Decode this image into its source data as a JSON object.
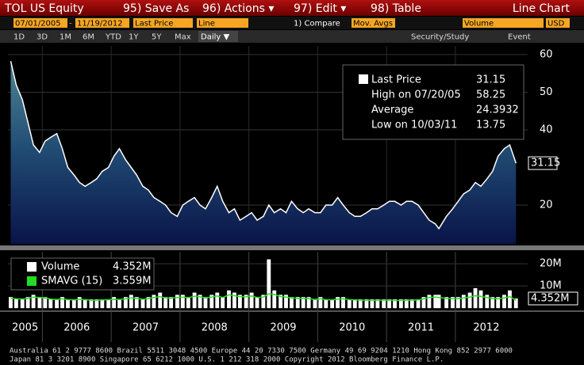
{
  "toolbar": {
    "security": "TOL US Equity",
    "save_as": "95) Save As",
    "actions": "96) Actions ▾",
    "edit": "97) Edit ▾",
    "table": "98) Table",
    "view": "Line Chart"
  },
  "settings_bar": {
    "start_date": "07/01/2005",
    "dash": "-",
    "end_date": "11/19/2012",
    "field": "Last Price",
    "style": "Line",
    "compare": "1) Compare",
    "mov_avgs": "Mov. Avgs",
    "lower": "Volume",
    "currency": "USD"
  },
  "period_bar": {
    "buttons": [
      "1D",
      "3D",
      "1M",
      "6M",
      "YTD",
      "1Y",
      "5Y",
      "Max"
    ],
    "frequency": "Daily ▼",
    "study": "Security/Study",
    "event": "Event"
  },
  "footer": {
    "line1": "Australia 61 2 9777 8600 Brazil 5511 3048 4500 Europe 44 20 7330 7500 Germany 49 69 9204 1210 Hong Kong 852 2977 6000",
    "line2": "Japan 81 3 3201 8900        Singapore 65 6212 1000        U.S. 1 212 318 2000        Copyright 2012 Bloomberg Finance L.P."
  },
  "chart_data": [
    {
      "type": "line",
      "legend": [
        {
          "label": "Last Price",
          "stat": "31.15"
        },
        {
          "label": "High on 07/20/05",
          "stat": "58.25"
        },
        {
          "label": "Average",
          "stat": "24.3932"
        },
        {
          "label": "Low on 10/03/11",
          "stat": "13.75"
        }
      ],
      "last_tag": "31.15",
      "x": [
        2005.54,
        2005.62,
        2005.71,
        2005.79,
        2005.87,
        2005.96,
        2006.04,
        2006.12,
        2006.21,
        2006.29,
        2006.37,
        2006.46,
        2006.54,
        2006.62,
        2006.71,
        2006.79,
        2006.87,
        2006.96,
        2007.04,
        2007.12,
        2007.21,
        2007.29,
        2007.37,
        2007.46,
        2007.54,
        2007.62,
        2007.71,
        2007.79,
        2007.87,
        2007.96,
        2008.04,
        2008.12,
        2008.21,
        2008.29,
        2008.37,
        2008.46,
        2008.54,
        2008.62,
        2008.71,
        2008.79,
        2008.87,
        2008.96,
        2009.04,
        2009.12,
        2009.21,
        2009.29,
        2009.37,
        2009.46,
        2009.54,
        2009.62,
        2009.71,
        2009.79,
        2009.87,
        2009.96,
        2010.04,
        2010.12,
        2010.21,
        2010.29,
        2010.37,
        2010.46,
        2010.54,
        2010.62,
        2010.71,
        2010.79,
        2010.87,
        2010.96,
        2011.04,
        2011.12,
        2011.21,
        2011.29,
        2011.37,
        2011.46,
        2011.54,
        2011.62,
        2011.71,
        2011.76,
        2011.87,
        2011.96,
        2012.04,
        2012.12,
        2012.21,
        2012.29,
        2012.37,
        2012.46,
        2012.54,
        2012.62,
        2012.71,
        2012.79,
        2012.88
      ],
      "series": [
        {
          "name": "Last Price",
          "color": "#ffffff",
          "values": [
            58.25,
            52,
            48,
            42,
            36,
            34,
            37,
            38,
            39,
            35,
            30,
            28,
            26,
            25,
            26,
            27,
            29,
            30,
            33,
            35,
            32,
            30,
            28,
            25,
            24,
            22,
            21,
            20,
            18,
            17,
            20,
            21,
            22,
            20,
            19,
            22,
            25,
            21,
            18,
            19,
            16,
            17,
            18,
            16,
            17,
            20,
            18,
            19,
            18,
            21,
            19,
            18,
            19,
            18,
            18,
            20,
            20,
            22,
            20,
            18,
            17,
            17,
            18,
            19,
            19,
            20,
            21,
            21,
            20,
            21,
            21,
            20,
            18,
            16,
            15,
            13.75,
            17,
            19,
            21,
            23,
            24,
            26,
            25,
            27,
            29,
            33,
            35,
            36,
            31.15
          ]
        }
      ],
      "xlim": [
        2005.5,
        2013.05
      ],
      "ylim": [
        9.7,
        62.3
      ],
      "yticks": [
        20,
        40,
        50,
        60
      ],
      "year_separators": [
        2006,
        2007,
        2008,
        2009,
        2010,
        2011,
        2012
      ],
      "xticks": [
        {
          "value": 2005.75,
          "label": "2005"
        },
        {
          "value": 2006.5,
          "label": "2006"
        },
        {
          "value": 2007.5,
          "label": "2007"
        },
        {
          "value": 2008.5,
          "label": "2008"
        },
        {
          "value": 2009.5,
          "label": "2009"
        },
        {
          "value": 2010.5,
          "label": "2010"
        },
        {
          "value": 2011.5,
          "label": "2011"
        },
        {
          "value": 2012.45,
          "label": "2012"
        }
      ],
      "grid": true
    },
    {
      "type": "bar",
      "legend": [
        {
          "label": "Volume",
          "stat": "4.352M"
        },
        {
          "label": "SMAVG (15)",
          "stat": "3.559M"
        }
      ],
      "last_tag": "4.352M",
      "series": [
        {
          "name": "Volume",
          "color": "#ffffff",
          "values": [
            5,
            4,
            4,
            5,
            6,
            5,
            5,
            4,
            4,
            5,
            4,
            4,
            5,
            4,
            4,
            4,
            4,
            4,
            5,
            4,
            5,
            6,
            5,
            4,
            5,
            6,
            7,
            5,
            5,
            6,
            6,
            5,
            7,
            6,
            5,
            6,
            7,
            5,
            8,
            7,
            6,
            6,
            7,
            5,
            6,
            22,
            8,
            6,
            6,
            5,
            5,
            5,
            5,
            4,
            5,
            4,
            4,
            5,
            5,
            4,
            4,
            4,
            4,
            4,
            4,
            4,
            4,
            4,
            4,
            4,
            4,
            4,
            5,
            6,
            6,
            6,
            5,
            5,
            5,
            6,
            7,
            9,
            8,
            6,
            5,
            5,
            6,
            8,
            4.352
          ]
        },
        {
          "name": "SMAVG (15)",
          "color": "#22dd22",
          "values": [
            4.5,
            4.2,
            4.1,
            4.4,
            5,
            4.8,
            4.6,
            4.1,
            3.9,
            4.2,
            3.8,
            3.7,
            4,
            3.8,
            3.6,
            3.6,
            3.7,
            3.8,
            4,
            3.9,
            4.2,
            4.6,
            4.4,
            4,
            4.3,
            4.8,
            5.2,
            4.6,
            4.5,
            4.8,
            5,
            4.7,
            5.4,
            5.1,
            4.6,
            5,
            5.5,
            4.8,
            6,
            5.6,
            5.2,
            5.1,
            5.5,
            4.8,
            5,
            6.5,
            6.2,
            5.2,
            5,
            4.6,
            4.4,
            4.4,
            4.3,
            3.9,
            4.2,
            3.8,
            3.7,
            4.1,
            4.2,
            3.8,
            3.7,
            3.6,
            3.6,
            3.5,
            3.6,
            3.6,
            3.6,
            3.5,
            3.5,
            3.6,
            3.6,
            3.7,
            4.2,
            4.8,
            5,
            4.8,
            4.4,
            4.2,
            4.3,
            4.6,
            5,
            5.6,
            5.3,
            4.8,
            4.3,
            4.2,
            4.6,
            5.2,
            3.559
          ]
        }
      ],
      "ylim": [
        -1,
        25.4
      ],
      "yticks": [
        {
          "value": 10,
          "label": "10M"
        },
        {
          "value": 20,
          "label": "20M"
        }
      ]
    }
  ]
}
